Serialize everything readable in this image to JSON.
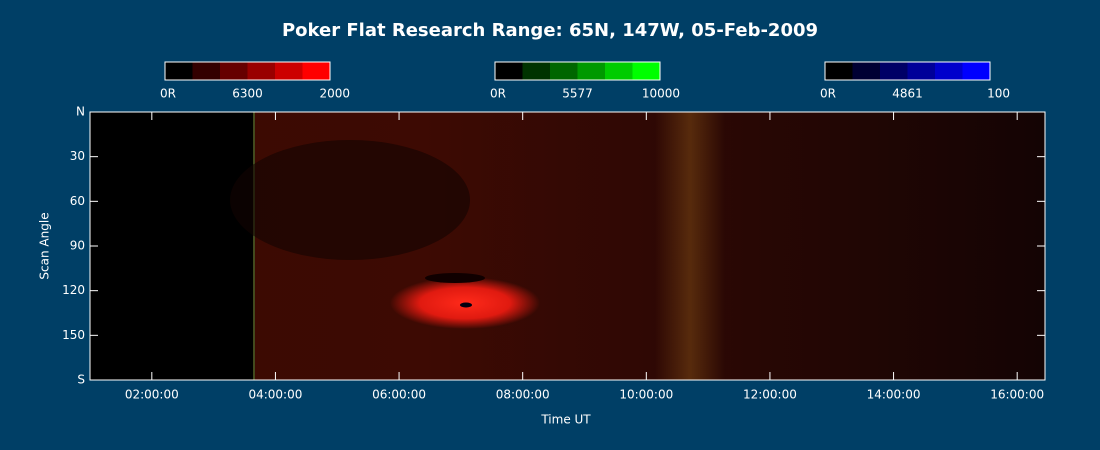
{
  "chart_data": {
    "type": "keogram",
    "title": "Poker Flat Research Range: 65N, 147W, 05-Feb-2009",
    "x_label": "Time UT",
    "y_label": "Scan Angle",
    "xlim": [
      1,
      16.45
    ],
    "xticks": [
      {
        "value": 2,
        "label": "02:00:00"
      },
      {
        "value": 4,
        "label": "04:00:00"
      },
      {
        "value": 6,
        "label": "06:00:00"
      },
      {
        "value": 8,
        "label": "08:00:00"
      },
      {
        "value": 10,
        "label": "10:00:00"
      },
      {
        "value": 12,
        "label": "12:00:00"
      },
      {
        "value": 14,
        "label": "14:00:00"
      },
      {
        "value": 16,
        "label": "16:00:00"
      }
    ],
    "ylim": [
      180,
      0
    ],
    "yticks": [
      {
        "value": 0,
        "label": "N"
      },
      30,
      60,
      90,
      120,
      150,
      {
        "value": 180,
        "label": "S"
      }
    ],
    "colorbars": [
      {
        "min": "0R",
        "line": "6300",
        "max": 2000,
        "colors": [
          "#000000",
          "#330000",
          "#660000",
          "#990000",
          "#cc0000",
          "#ff0000"
        ]
      },
      {
        "min": "0R",
        "line": "5577",
        "max": 10000,
        "colors": [
          "#000000",
          "#003300",
          "#006600",
          "#009900",
          "#00cc00",
          "#00ff00"
        ]
      },
      {
        "min": "0R",
        "line": "4861",
        "max": 100,
        "colors": [
          "#000000",
          "#000033",
          "#000066",
          "#000099",
          "#0000cc",
          "#0000ff"
        ]
      }
    ]
  }
}
